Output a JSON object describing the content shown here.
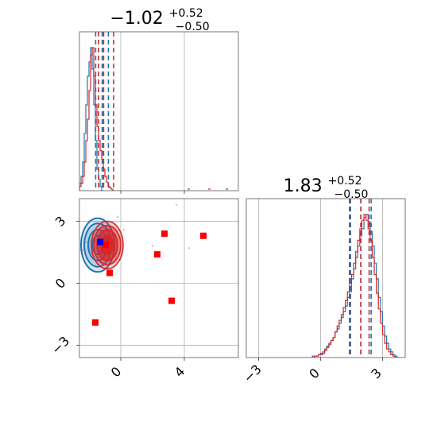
{
  "chart_data": {
    "type": "corner",
    "params": [
      {
        "median": -1.02,
        "plus": "0.52",
        "minus": "0.50",
        "xlim": [
          -2.6,
          7.4
        ]
      },
      {
        "median": 1.83,
        "plus": "0.52",
        "minus": "0.50",
        "xlim": [
          -3.6,
          4.1
        ]
      }
    ],
    "titles": [
      {
        "main": "−1.02",
        "sup": "+0.52",
        "sub": "−0.50"
      },
      {
        "main": "1.83",
        "sup": "+0.52",
        "sub": "−0.50"
      }
    ],
    "ticks": {
      "x_param0": {
        "values": [
          0,
          4
        ],
        "labels": [
          "0",
          "4"
        ]
      },
      "x_param1": {
        "values": [
          -3,
          0,
          3
        ],
        "labels": [
          "−3",
          "0",
          "3"
        ]
      },
      "y_param1": {
        "values": [
          -3,
          0,
          3
        ],
        "labels": [
          "−3",
          "0",
          "3"
        ]
      }
    },
    "y_lim_2d": [
      -3.6,
      4.1
    ],
    "grid": true,
    "series": [
      {
        "color": "#1f77b4",
        "quantiles_p0": [
          -1.58,
          -1.17,
          -0.78
        ],
        "quantiles_p1": [
          1.45,
          1.95,
          2.45
        ],
        "hist_p0": {
          "start": -2.6,
          "width": 0.1,
          "counts": [
            5,
            10,
            20,
            40,
            60,
            80,
            90,
            100,
            85,
            60,
            35,
            15,
            8,
            3,
            0
          ]
        },
        "hist_p1": {
          "start": -0.4,
          "width": 0.1,
          "counts": [
            1,
            1,
            1,
            2,
            3,
            4,
            6,
            8,
            10,
            12,
            14,
            18,
            20,
            24,
            28,
            32,
            36,
            42,
            46,
            55,
            62,
            70,
            78,
            85,
            90,
            98,
            100,
            95,
            88,
            78,
            66,
            55,
            42,
            32,
            22,
            15,
            10,
            6,
            4,
            2,
            1,
            0
          ]
        },
        "contour_center": [
          -1.45,
          1.85
        ],
        "contour_radii": [
          [
            0.35,
            0.45
          ],
          [
            0.6,
            0.75
          ],
          [
            0.85,
            1.05
          ],
          [
            1.05,
            1.3
          ]
        ],
        "marker": [
          -1.3,
          2.0
        ]
      },
      {
        "color": "#d62728",
        "quantiles_p0": [
          -1.4,
          -1.08,
          -0.45
        ],
        "quantiles_p1": [
          1.4,
          1.95,
          2.35
        ],
        "hist_p0": {
          "start": -2.6,
          "width": 0.1,
          "counts": [
            3,
            5,
            10,
            20,
            35,
            50,
            70,
            95,
            100,
            80,
            60,
            45,
            35,
            28,
            22,
            15,
            10,
            6,
            3,
            2,
            1,
            0
          ]
        },
        "hist_p1": {
          "start": -0.4,
          "width": 0.1,
          "counts": [
            0,
            1,
            1,
            2,
            2,
            3,
            5,
            7,
            9,
            12,
            14,
            18,
            22,
            26,
            30,
            35,
            40,
            46,
            52,
            58,
            66,
            74,
            82,
            90,
            96,
            100,
            96,
            90,
            82,
            70,
            58,
            45,
            34,
            24,
            16,
            10,
            6,
            4,
            2,
            1,
            0
          ]
        },
        "contour_center": [
          -0.85,
          1.85
        ],
        "contour_radii": [
          [
            0.4,
            0.45
          ],
          [
            0.65,
            0.75
          ],
          [
            0.85,
            0.95
          ],
          [
            1.0,
            1.15
          ]
        ],
        "scatter": [
          [
            -1.25,
            2.0
          ],
          [
            -0.95,
            1.85
          ],
          [
            -0.7,
            0.5
          ],
          [
            2.75,
            2.4
          ],
          [
            2.3,
            1.4
          ],
          [
            5.2,
            2.3
          ],
          [
            3.2,
            -0.85
          ],
          [
            -1.6,
            -1.9
          ]
        ]
      }
    ]
  }
}
